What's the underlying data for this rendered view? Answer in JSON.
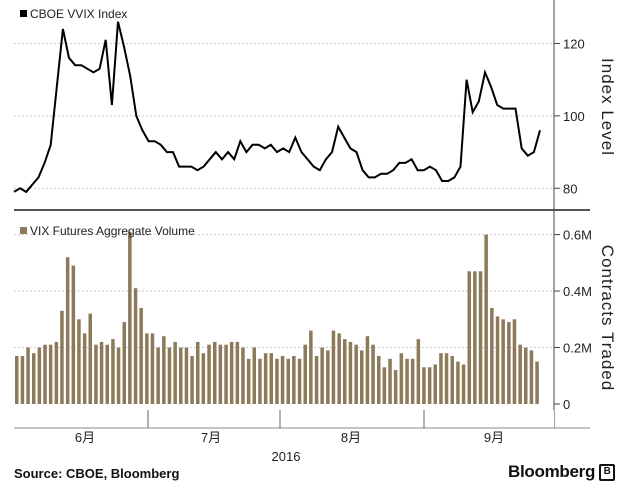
{
  "chart_data": [
    {
      "type": "line",
      "legend": "CBOE VVIX Index",
      "ylabel": "Index Level",
      "yticks": [
        80,
        100,
        120
      ],
      "ylim": [
        74,
        132
      ],
      "color": "#000000",
      "values": [
        79,
        80,
        79,
        81,
        83,
        87,
        92,
        108,
        124,
        116,
        114,
        114,
        113,
        112,
        113,
        121,
        103,
        126,
        119,
        111,
        100,
        96,
        93,
        93,
        92,
        90,
        90,
        86,
        86,
        86,
        85,
        86,
        88,
        90,
        88,
        90,
        88,
        93,
        90,
        92,
        92,
        91,
        92,
        90,
        91,
        90,
        94,
        90,
        88,
        86,
        85,
        88,
        90,
        97,
        94,
        91,
        90,
        85,
        83,
        83,
        84,
        84,
        85,
        87,
        87,
        88,
        85,
        85,
        86,
        85,
        82,
        82,
        83,
        86,
        110,
        101,
        104,
        112,
        108,
        103,
        102,
        102,
        102,
        91,
        89,
        90,
        96
      ]
    },
    {
      "type": "bar",
      "legend": "VIX Futures Aggregate Volume",
      "ylabel": "Contracts Traded",
      "yticks": [
        0,
        0.2,
        0.4,
        0.6
      ],
      "yticklabels": [
        "0",
        "0.2M",
        "0.4M",
        "0.6M"
      ],
      "unit": "M",
      "ylim": [
        0,
        0.68
      ],
      "color": "#8c7a5a",
      "values": [
        0.17,
        0.17,
        0.2,
        0.18,
        0.2,
        0.21,
        0.21,
        0.22,
        0.33,
        0.52,
        0.49,
        0.3,
        0.25,
        0.32,
        0.21,
        0.22,
        0.21,
        0.23,
        0.2,
        0.29,
        0.61,
        0.41,
        0.34,
        0.25,
        0.25,
        0.2,
        0.24,
        0.2,
        0.22,
        0.2,
        0.2,
        0.17,
        0.22,
        0.18,
        0.21,
        0.22,
        0.21,
        0.21,
        0.22,
        0.22,
        0.2,
        0.16,
        0.2,
        0.16,
        0.18,
        0.18,
        0.16,
        0.17,
        0.16,
        0.17,
        0.16,
        0.21,
        0.26,
        0.17,
        0.2,
        0.19,
        0.26,
        0.25,
        0.23,
        0.22,
        0.21,
        0.19,
        0.24,
        0.21,
        0.17,
        0.13,
        0.16,
        0.12,
        0.18,
        0.16,
        0.16,
        0.23,
        0.13,
        0.13,
        0.14,
        0.18,
        0.18,
        0.17,
        0.15,
        0.14,
        0.47,
        0.47,
        0.47,
        0.6,
        0.34,
        0.31,
        0.3,
        0.29,
        0.3,
        0.21,
        0.2,
        0.19,
        0.15
      ]
    }
  ],
  "x_axis": {
    "labels": [
      "6月",
      "7月",
      "8月",
      "9月"
    ],
    "year": "2016"
  },
  "footer": {
    "source": "Source: CBOE, Bloomberg",
    "brand": "Bloomberg"
  }
}
